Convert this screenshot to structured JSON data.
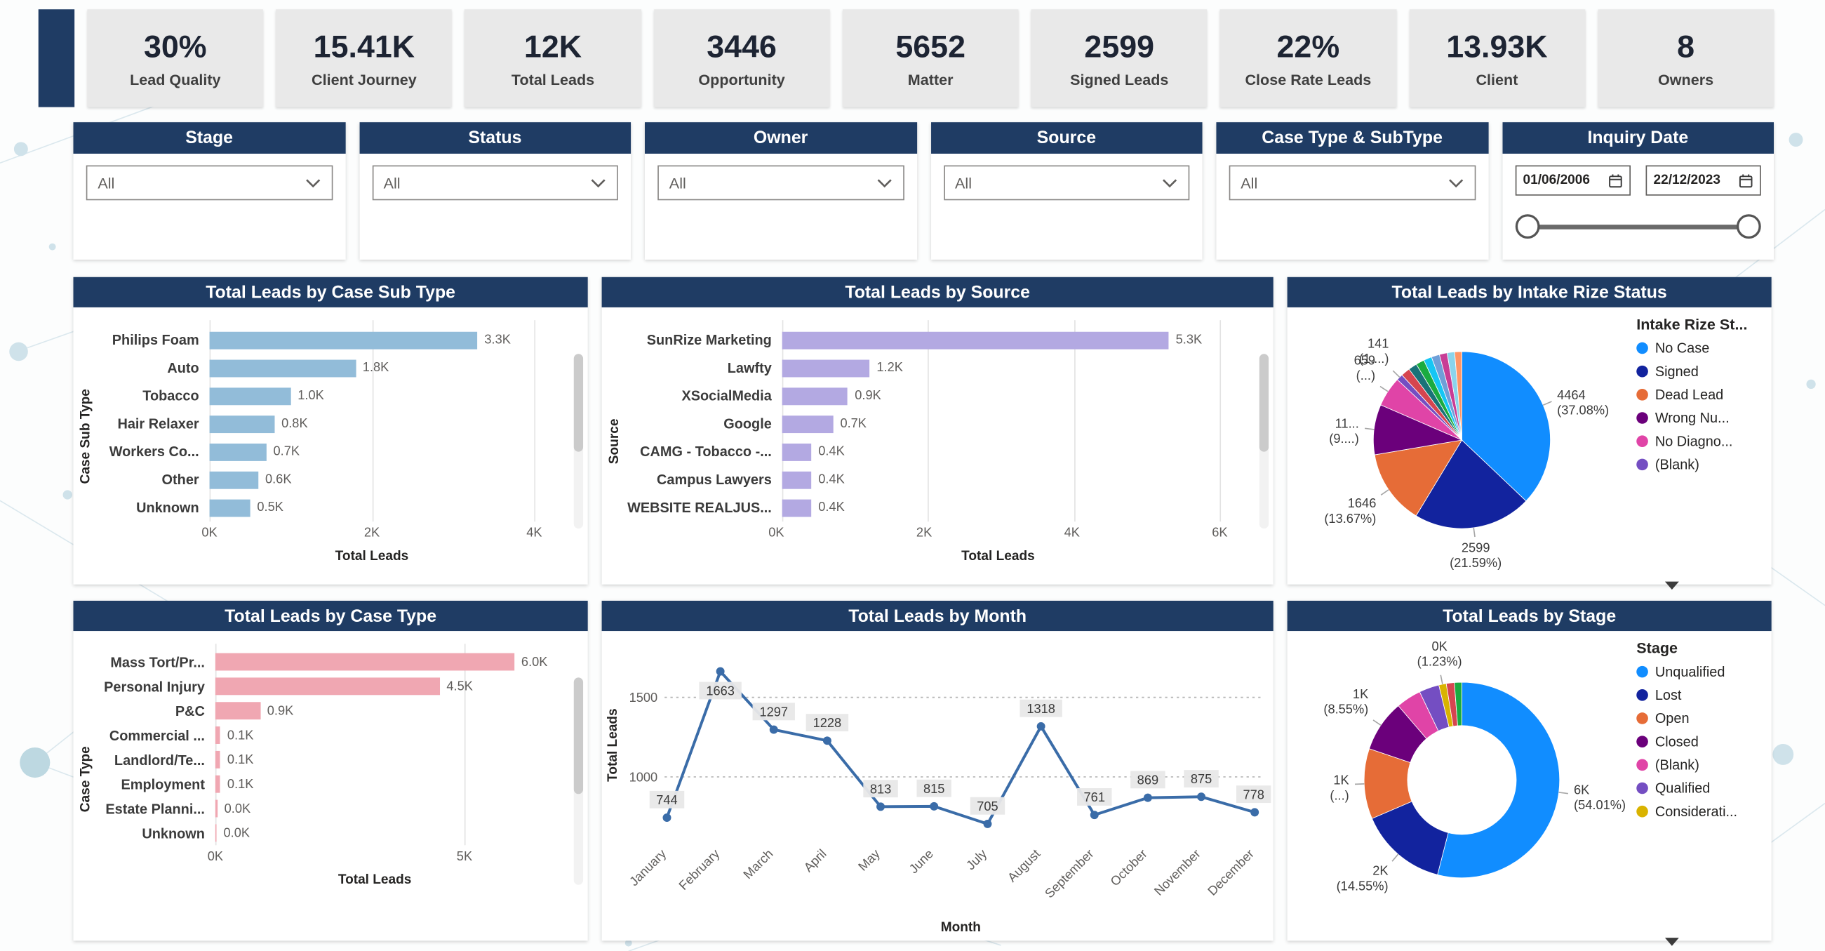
{
  "theme": {
    "navy": "#1f3c64",
    "kpi_background": "#e9e9e9",
    "card_background": "#ffffff"
  },
  "kpis": [
    {
      "value": "30%",
      "label": "Lead Quality"
    },
    {
      "value": "15.41K",
      "label": "Client Journey"
    },
    {
      "value": "12K",
      "label": "Total Leads"
    },
    {
      "value": "3446",
      "label": "Opportunity"
    },
    {
      "value": "5652",
      "label": "Matter"
    },
    {
      "value": "2599",
      "label": "Signed Leads"
    },
    {
      "value": "22%",
      "label": "Close Rate Leads"
    },
    {
      "value": "13.93K",
      "label": "Client"
    },
    {
      "value": "8",
      "label": "Owners"
    }
  ],
  "slicers": [
    {
      "title": "Stage",
      "value": "All"
    },
    {
      "title": "Status",
      "value": "All"
    },
    {
      "title": "Owner",
      "value": "All"
    },
    {
      "title": "Source",
      "value": "All"
    },
    {
      "title": "Case Type & SubType",
      "value": "All"
    }
  ],
  "date_slicer": {
    "title": "Inquiry Date",
    "start_date": "01/06/2006",
    "end_date": "22/12/2023"
  },
  "chart_data": [
    {
      "type": "bar",
      "orientation": "horizontal",
      "title": "Total Leads by Case Sub Type",
      "xlabel": "Total Leads",
      "ylabel": "Case Sub Type",
      "categories": [
        "Philips Foam",
        "Auto",
        "Tobacco",
        "Hair Relaxer",
        "Workers Co...",
        "Other",
        "Unknown"
      ],
      "values": [
        3300,
        1800,
        1000,
        800,
        700,
        600,
        500
      ],
      "value_labels": [
        "3.3K",
        "1.8K",
        "1.0K",
        "0.8K",
        "0.7K",
        "0.6K",
        "0.5K"
      ],
      "xmax": 4000,
      "xticks": [
        {
          "value": 0,
          "label": "0K"
        },
        {
          "value": 2000,
          "label": "2K"
        },
        {
          "value": 4000,
          "label": "4K"
        }
      ],
      "bar_color": "#92bcd9"
    },
    {
      "type": "bar",
      "orientation": "horizontal",
      "title": "Total Leads by Source",
      "xlabel": "Total Leads",
      "ylabel": "Source",
      "categories": [
        "SunRize Marketing",
        "Lawfty",
        "XSocialMedia",
        "Google",
        "CAMG - Tobacco -...",
        "Campus Lawyers",
        "WEBSITE REALJUS..."
      ],
      "values": [
        5300,
        1200,
        900,
        700,
        400,
        400,
        400
      ],
      "value_labels": [
        "5.3K",
        "1.2K",
        "0.9K",
        "0.7K",
        "0.4K",
        "0.4K",
        "0.4K"
      ],
      "xmax": 6000,
      "xticks": [
        {
          "value": 0,
          "label": "0K"
        },
        {
          "value": 2000,
          "label": "2K"
        },
        {
          "value": 4000,
          "label": "4K"
        },
        {
          "value": 6000,
          "label": "6K"
        }
      ],
      "bar_color": "#b3a9e2"
    },
    {
      "type": "pie",
      "donut": false,
      "title": "Total Leads by Intake Rize Status",
      "legend_title": "Intake Rize St...",
      "legend": [
        {
          "name": "No Case",
          "color": "#118DFF"
        },
        {
          "name": "Signed",
          "color": "#12239E"
        },
        {
          "name": "Dead Lead",
          "color": "#E66C37"
        },
        {
          "name": "Wrong Nu...",
          "color": "#6B007B"
        },
        {
          "name": "No Diagno...",
          "color": "#E044A7"
        },
        {
          "name": "(Blank)",
          "color": "#744EC2"
        }
      ],
      "slices": [
        {
          "name": "No Case",
          "value": 4464,
          "label": "4464 (37.08%)",
          "color": "#118DFF"
        },
        {
          "name": "Signed",
          "value": 2599,
          "label": "2599 (21.59%)",
          "color": "#12239E"
        },
        {
          "name": "Dead Lead",
          "value": 1646,
          "label": "1646 (13.67%)",
          "color": "#E66C37"
        },
        {
          "name": "Wrong Nu...",
          "value": 1104,
          "label": "11... (9....)",
          "color": "#6B007B"
        },
        {
          "name": "No Diagno...",
          "value": 659,
          "label": "659 (...)",
          "color": "#E044A7"
        },
        {
          "name": "(Blank)",
          "value": 141,
          "label": "141 (1....)",
          "color": "#744EC2"
        },
        {
          "name": "",
          "value": 200,
          "label": "",
          "color": "#D64550"
        },
        {
          "name": "",
          "value": 190,
          "label": "",
          "color": "#197278"
        },
        {
          "name": "",
          "value": 185,
          "label": "",
          "color": "#1AAB40"
        },
        {
          "name": "",
          "value": 180,
          "label": "",
          "color": "#15C6F4"
        },
        {
          "name": "",
          "value": 180,
          "label": "",
          "color": "#6F9FD8"
        },
        {
          "name": "",
          "value": 170,
          "label": "",
          "color": "#C83D95"
        },
        {
          "name": "",
          "value": 165,
          "label": "",
          "color": "#8AD4EB"
        },
        {
          "name": "",
          "value": 157,
          "label": "",
          "color": "#FE9666"
        }
      ]
    },
    {
      "type": "bar",
      "orientation": "horizontal",
      "title": "Total Leads by Case Type",
      "xlabel": "Total Leads",
      "ylabel": "Case Type",
      "categories": [
        "Mass Tort/Pr...",
        "Personal Injury",
        "P&C",
        "Commercial ...",
        "Landlord/Te...",
        "Employment",
        "Estate Planni...",
        "Unknown"
      ],
      "values": [
        6000,
        4500,
        900,
        100,
        100,
        100,
        40,
        20
      ],
      "value_labels": [
        "6.0K",
        "4.5K",
        "0.9K",
        "0.1K",
        "0.1K",
        "0.1K",
        "0.0K",
        "0.0K"
      ],
      "xmax": 6400,
      "xticks": [
        {
          "value": 0,
          "label": "0K"
        },
        {
          "value": 5000,
          "label": "5K"
        }
      ],
      "bar_color": "#f0a7b2"
    },
    {
      "type": "line",
      "title": "Total Leads by Month",
      "xlabel": "Month",
      "ylabel": "Total Leads",
      "x": [
        "January",
        "February",
        "March",
        "April",
        "May",
        "June",
        "July",
        "August",
        "September",
        "October",
        "November",
        "December"
      ],
      "values": [
        744,
        1663,
        1297,
        1228,
        813,
        815,
        705,
        1318,
        761,
        869,
        875,
        778
      ],
      "yticks": [
        1000,
        1500
      ],
      "ymin": 600,
      "ymax": 1800,
      "line_color": "#3a6ca8"
    },
    {
      "type": "pie",
      "donut": true,
      "title": "Total Leads by Stage",
      "legend_title": "Stage",
      "legend": [
        {
          "name": "Unqualified",
          "color": "#118DFF"
        },
        {
          "name": "Lost",
          "color": "#12239E"
        },
        {
          "name": "Open",
          "color": "#E66C37"
        },
        {
          "name": "Closed",
          "color": "#6B007B"
        },
        {
          "name": "(Blank)",
          "color": "#E044A7"
        },
        {
          "name": "Qualified",
          "color": "#744EC2"
        },
        {
          "name": "Considerati...",
          "color": "#D9B300"
        }
      ],
      "slices": [
        {
          "name": "Unqualified",
          "value": 6503,
          "label": "6K (54.01%)",
          "color": "#118DFF"
        },
        {
          "name": "Lost",
          "value": 1752,
          "label": "2K (14.55%)",
          "color": "#12239E"
        },
        {
          "name": "Open",
          "value": 1400,
          "label": "1K (...)",
          "color": "#E66C37"
        },
        {
          "name": "Closed",
          "value": 1029,
          "label": "1K (8.55%)",
          "color": "#6B007B"
        },
        {
          "name": "(Blank)",
          "value": 500,
          "label": "",
          "color": "#E044A7"
        },
        {
          "name": "Qualified",
          "value": 400,
          "label": "",
          "color": "#744EC2"
        },
        {
          "name": "Considerati...",
          "value": 148,
          "label": "0K (1.23%)",
          "color": "#D9B300"
        },
        {
          "name": "",
          "value": 160,
          "label": "",
          "color": "#D64550"
        },
        {
          "name": "",
          "value": 148,
          "label": "",
          "color": "#1AAB40"
        }
      ]
    }
  ]
}
